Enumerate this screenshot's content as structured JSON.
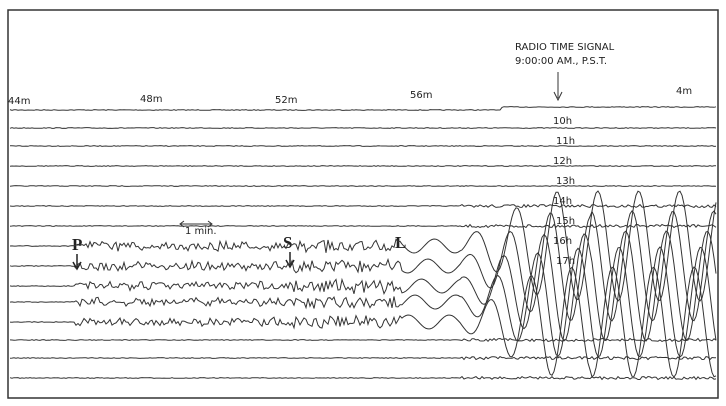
{
  "header": {
    "signal_title": "RADIO TIME SIGNAL",
    "signal_time": "9:00:00 AM., P.S.T."
  },
  "minute_marks": [
    "44m",
    "48m",
    "52m",
    "56m",
    "4m"
  ],
  "hour_marks": [
    "10h",
    "11h",
    "12h",
    "13h",
    "14h",
    "15h",
    "16h",
    "17h"
  ],
  "phases": [
    "P",
    "S",
    "L"
  ],
  "scale_label": "1 min."
}
